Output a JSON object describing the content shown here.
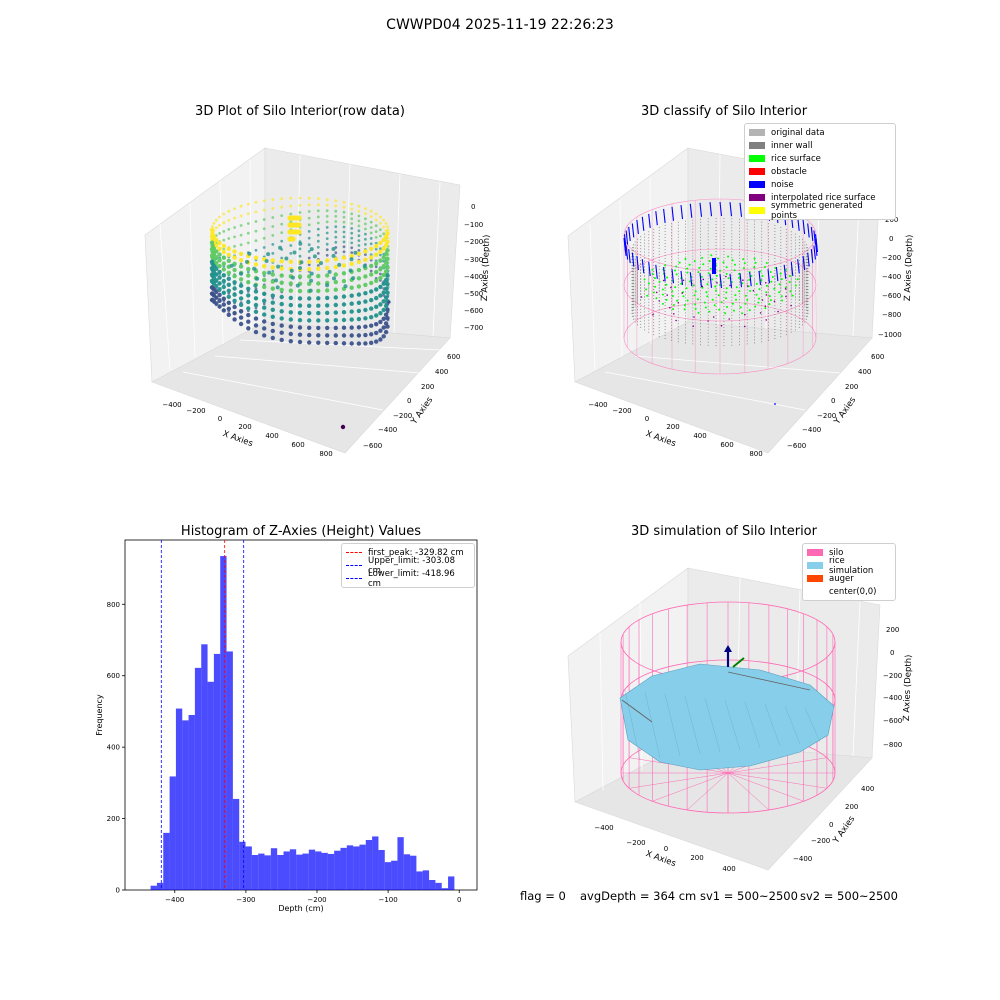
{
  "suptitle": "CWWPD04 2025-11-19 22:26:23",
  "panels": {
    "raw": {
      "title": "3D Plot of Silo Interior(row data)",
      "xlabel": "X Axies",
      "ylabel": "Y Axies",
      "zlabel": "Z Axies (Depth)",
      "xticks": [
        "−400",
        "−200",
        "0",
        "200",
        "400",
        "600",
        "800"
      ],
      "yticks": [
        "600",
        "400",
        "200",
        "0",
        "−200",
        "−400",
        "−600"
      ],
      "zticks": [
        "0",
        "−100",
        "−200",
        "−300",
        "−400",
        "−500",
        "−600",
        "−700"
      ]
    },
    "classify": {
      "title": "3D classify of Silo Interior",
      "xlabel": "X Axies",
      "ylabel": "Y Axies",
      "zlabel": "Z Axies (Depth)",
      "xticks": [
        "−400",
        "−200",
        "0",
        "200",
        "400",
        "600",
        "800"
      ],
      "yticks": [
        "600",
        "400",
        "200",
        "0",
        "−200",
        "−400",
        "−600"
      ],
      "zticks": [
        "200",
        "0",
        "−200",
        "−400",
        "−600",
        "−800",
        "−1000"
      ],
      "legend": [
        {
          "label": "original data",
          "color": "#b3b3b3"
        },
        {
          "label": "inner wall",
          "color": "#808080"
        },
        {
          "label": "rice surface",
          "color": "#00ff00"
        },
        {
          "label": "obstacle",
          "color": "#ff0000"
        },
        {
          "label": "noise",
          "color": "#0000ff"
        },
        {
          "label": "interpolated rice surface",
          "color": "#800080"
        },
        {
          "label": "symmetric generated points",
          "color": "#ffff00"
        }
      ]
    },
    "simulation": {
      "title": "3D simulation of Silo Interior",
      "xlabel": "X Axies",
      "ylabel": "Y Axies",
      "zlabel": "Z Axies (Depth)",
      "xticks": [
        "−400",
        "−200",
        "0",
        "200",
        "400"
      ],
      "yticks": [
        "400",
        "200",
        "0",
        "−200",
        "−400"
      ],
      "zticks": [
        "200",
        "0",
        "−200",
        "−400",
        "−600",
        "−800"
      ],
      "legend": [
        {
          "label": "silo",
          "color": "#ff69b4"
        },
        {
          "label": "rice simulation",
          "color": "#87ceeb"
        },
        {
          "label": "auger",
          "color": "#ff4500"
        },
        {
          "label": "center(0,0)",
          "color": "#ffffff"
        }
      ]
    }
  },
  "status": {
    "flag": "flag = 0",
    "avg": "avgDepth = 364 cm",
    "sv1": "sv1 = 500~2500",
    "sv2": "sv2 = 500~2500"
  },
  "chart_data": {
    "type": "bar",
    "title": "Histogram of Z-Axies (Height) Values",
    "xlabel": "Depth (cm)",
    "ylabel": "Frequency",
    "xlim": [
      -470,
      25
    ],
    "ylim": [
      0,
      980
    ],
    "xticks": [
      -400,
      -300,
      -200,
      -100,
      0
    ],
    "yticks": [
      0,
      200,
      400,
      600,
      800
    ],
    "bar_color": "#0000ff",
    "bin_start": -434,
    "bin_width": 8.9,
    "values": [
      12,
      20,
      160,
      318,
      508,
      475,
      490,
      622,
      688,
      583,
      661,
      935,
      668,
      255,
      135,
      122,
      98,
      102,
      97,
      117,
      98,
      108,
      114,
      99,
      102,
      113,
      108,
      104,
      101,
      110,
      118,
      125,
      122,
      127,
      140,
      150,
      112,
      78,
      82,
      148,
      100,
      96,
      52,
      55,
      28,
      20,
      5,
      38
    ],
    "vlines": [
      {
        "x": -329.82,
        "color": "#ff0000",
        "label": "first_peak: -329.82 cm"
      },
      {
        "x": -303.08,
        "color": "#0000ff",
        "label": "Upper_limit: -303.08 cm"
      },
      {
        "x": -418.96,
        "color": "#0000ff",
        "label": "Lower_limit: -418.96 cm"
      }
    ],
    "legend_position": "upper right"
  }
}
